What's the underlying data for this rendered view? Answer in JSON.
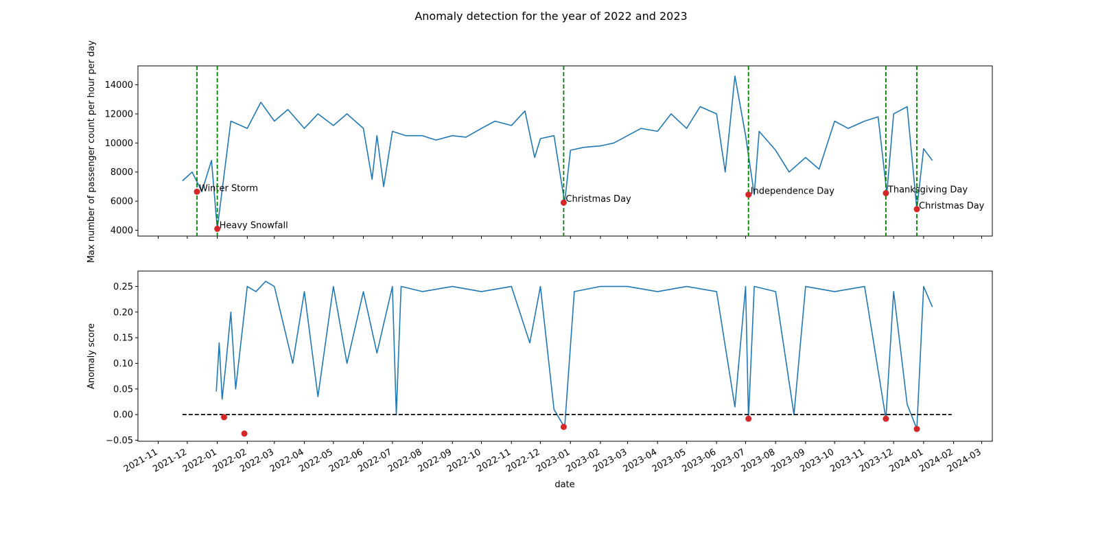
{
  "title": "Anomaly detection for the year of 2022 and 2023",
  "colors": {
    "series": "#1f77b4",
    "anomaly_point": "#d62728",
    "vline": "#008000",
    "threshold": "#000000"
  },
  "chart_data": [
    {
      "type": "line",
      "ylabel": "Max number of passenger count per hour per day",
      "ylim": [
        3600,
        15300
      ],
      "yticks": [
        4000,
        6000,
        8000,
        10000,
        12000,
        14000
      ],
      "grid": false,
      "series": [
        {
          "x": [
            "2021-11-26",
            "2021-12-06",
            "2021-12-16",
            "2021-12-26",
            "2022-01-01",
            "2022-01-15",
            "2022-02-01",
            "2022-02-15",
            "2022-03-01",
            "2022-03-15",
            "2022-04-01",
            "2022-04-15",
            "2022-05-01",
            "2022-05-15",
            "2022-06-01",
            "2022-06-10",
            "2022-06-15",
            "2022-06-22",
            "2022-07-01",
            "2022-07-15",
            "2022-08-01",
            "2022-08-15",
            "2022-09-01",
            "2022-09-15",
            "2022-10-01",
            "2022-10-15",
            "2022-11-01",
            "2022-11-15",
            "2022-11-25",
            "2022-12-01",
            "2022-12-15",
            "2022-12-26",
            "2023-01-01",
            "2023-01-15",
            "2023-02-01",
            "2023-02-15",
            "2023-03-01",
            "2023-03-15",
            "2023-04-01",
            "2023-04-15",
            "2023-05-01",
            "2023-05-15",
            "2023-06-01",
            "2023-06-10",
            "2023-06-20",
            "2023-07-01",
            "2023-07-10",
            "2023-07-15",
            "2023-08-01",
            "2023-08-15",
            "2023-09-01",
            "2023-09-15",
            "2023-10-01",
            "2023-10-15",
            "2023-11-01",
            "2023-11-15",
            "2023-11-24",
            "2023-12-01",
            "2023-12-15",
            "2023-12-25",
            "2024-01-01",
            "2024-01-10"
          ],
          "y": [
            7400,
            8000,
            6650,
            8800,
            4100,
            11500,
            11000,
            12800,
            11500,
            12300,
            11000,
            12000,
            11200,
            12000,
            11000,
            7500,
            10500,
            7000,
            10800,
            10500,
            10500,
            10200,
            10500,
            10400,
            11000,
            11500,
            11200,
            12200,
            9000,
            10300,
            10500,
            5900,
            9500,
            9700,
            9800,
            10000,
            10500,
            11000,
            10800,
            12000,
            11000,
            12500,
            12000,
            8000,
            14600,
            10500,
            6450,
            10800,
            9500,
            8000,
            9000,
            8200,
            11500,
            11000,
            11500,
            11800,
            6550,
            12000,
            12500,
            5450,
            9600,
            8800
          ]
        }
      ],
      "anomalies": [
        {
          "date": "2021-12-11",
          "value": 6650,
          "label": "Winter Storm"
        },
        {
          "date": "2022-01-01",
          "value": 4100,
          "label": "Heavy Snowfall"
        },
        {
          "date": "2022-12-25",
          "value": 5900,
          "label": "Christmas Day"
        },
        {
          "date": "2023-07-04",
          "value": 6450,
          "label": "Independence Day"
        },
        {
          "date": "2023-11-23",
          "value": 6550,
          "label": "Thanksgiving Day"
        },
        {
          "date": "2023-12-25",
          "value": 5450,
          "label": "Christmas Day"
        }
      ]
    },
    {
      "type": "line",
      "xlabel": "date",
      "ylabel": "Anomaly score",
      "ylim": [
        -0.052,
        0.28
      ],
      "yticks": [
        -0.05,
        0.0,
        0.05,
        0.1,
        0.15,
        0.2,
        0.25
      ],
      "threshold": 0.0,
      "grid": false,
      "xticks": [
        "2021-11",
        "2021-12",
        "2022-01",
        "2022-02",
        "2022-03",
        "2022-04",
        "2022-05",
        "2022-06",
        "2022-07",
        "2022-08",
        "2022-09",
        "2022-10",
        "2022-11",
        "2022-12",
        "2023-01",
        "2023-02",
        "2023-03",
        "2023-04",
        "2023-05",
        "2023-06",
        "2023-07",
        "2023-08",
        "2023-09",
        "2023-10",
        "2023-11",
        "2023-12",
        "2024-01",
        "2024-02",
        "2024-03"
      ],
      "series": [
        {
          "x": [
            "2021-12-31",
            "2022-01-03",
            "2022-01-06",
            "2022-01-10",
            "2022-01-15",
            "2022-01-20",
            "2022-02-01",
            "2022-02-10",
            "2022-02-20",
            "2022-03-01",
            "2022-03-20",
            "2022-04-01",
            "2022-04-15",
            "2022-05-01",
            "2022-05-15",
            "2022-06-01",
            "2022-06-15",
            "2022-07-01",
            "2022-07-05",
            "2022-07-10",
            "2022-08-01",
            "2022-09-01",
            "2022-10-01",
            "2022-11-01",
            "2022-11-20",
            "2022-12-01",
            "2022-12-15",
            "2022-12-26",
            "2023-01-05",
            "2023-02-01",
            "2023-03-01",
            "2023-04-01",
            "2023-05-01",
            "2023-06-01",
            "2023-06-20",
            "2023-07-01",
            "2023-07-04",
            "2023-07-10",
            "2023-08-01",
            "2023-08-20",
            "2023-09-01",
            "2023-10-01",
            "2023-11-01",
            "2023-11-23",
            "2023-12-01",
            "2023-12-15",
            "2023-12-25",
            "2024-01-01",
            "2024-01-10"
          ],
          "y": [
            0.045,
            0.14,
            0.03,
            0.1,
            0.2,
            0.05,
            0.25,
            0.24,
            0.26,
            0.25,
            0.1,
            0.24,
            0.035,
            0.25,
            0.1,
            0.24,
            0.12,
            0.25,
            0.0,
            0.25,
            0.24,
            0.25,
            0.24,
            0.25,
            0.14,
            0.25,
            0.01,
            -0.025,
            0.24,
            0.25,
            0.25,
            0.24,
            0.25,
            0.24,
            0.015,
            0.25,
            -0.008,
            0.25,
            0.24,
            0.0,
            0.25,
            0.24,
            0.25,
            -0.008,
            0.24,
            0.02,
            -0.028,
            0.25,
            0.21
          ]
        }
      ],
      "anomalies": [
        {
          "date": "2022-01-08",
          "value": -0.005
        },
        {
          "date": "2022-01-29",
          "value": -0.037
        },
        {
          "date": "2022-12-25",
          "value": -0.024
        },
        {
          "date": "2023-07-04",
          "value": -0.008
        },
        {
          "date": "2023-11-23",
          "value": -0.008
        },
        {
          "date": "2023-12-25",
          "value": -0.028
        }
      ]
    }
  ]
}
